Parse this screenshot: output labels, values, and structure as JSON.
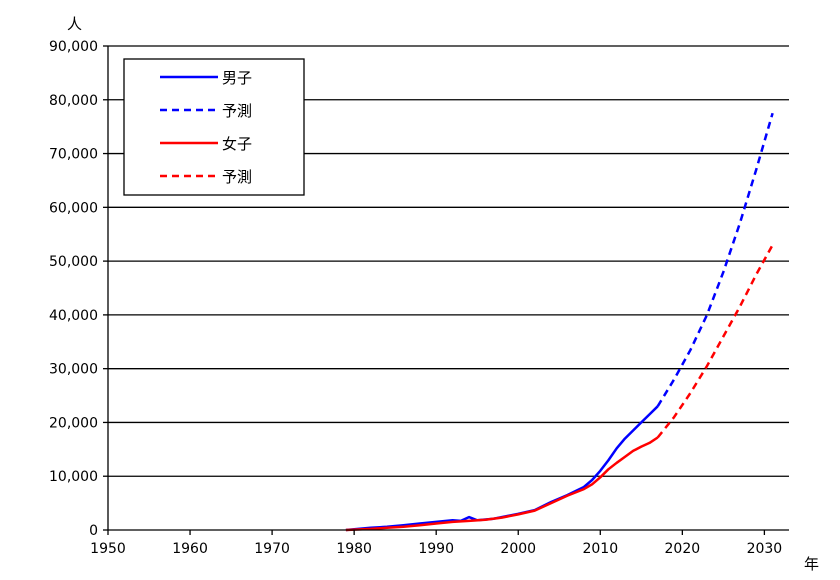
{
  "chart_data": {
    "type": "line",
    "y_unit_label": "人",
    "x_unit_label": "年",
    "xlim": [
      1950,
      2033
    ],
    "ylim": [
      0,
      90000
    ],
    "x_ticks": [
      1950,
      1960,
      1970,
      1980,
      1990,
      2000,
      2010,
      2020,
      2030
    ],
    "x_tick_labels": [
      "1950",
      "1960",
      "1970",
      "1980",
      "1990",
      "2000",
      "2010",
      "2020",
      "2030"
    ],
    "y_ticks": [
      0,
      10000,
      20000,
      30000,
      40000,
      50000,
      60000,
      70000,
      80000,
      90000
    ],
    "y_tick_labels": [
      "0",
      "10,000",
      "20,000",
      "30,000",
      "40,000",
      "50,000",
      "60,000",
      "70,000",
      "80,000",
      "90,000"
    ],
    "grid": "horizontal",
    "legend_position": "top-left",
    "series": [
      {
        "name": "男子",
        "color": "#0000ff",
        "dash": "solid",
        "x": [
          1979,
          1982,
          1984,
          1986,
          1988,
          1990,
          1992,
          1993,
          1994,
          1995,
          1997,
          1999,
          2000,
          2002,
          2004,
          2006,
          2008,
          2009,
          2010,
          2011,
          2012,
          2013,
          2014,
          2015,
          2016,
          2017
        ],
        "y": [
          0,
          400,
          600,
          900,
          1200,
          1500,
          1800,
          1700,
          2400,
          1800,
          2100,
          2700,
          3000,
          3700,
          5200,
          6500,
          8000,
          9300,
          11000,
          13000,
          15200,
          17000,
          18500,
          20000,
          21500,
          23000
        ]
      },
      {
        "name": "予測",
        "color": "#0000ff",
        "dash": "dashed",
        "x": [
          2017,
          2019,
          2021,
          2023,
          2025,
          2027,
          2029,
          2031
        ],
        "y": [
          23000,
          28000,
          33500,
          40000,
          48000,
          57000,
          67000,
          77500
        ]
      },
      {
        "name": "女子",
        "color": "#ff0000",
        "dash": "solid",
        "x": [
          1979,
          1982,
          1984,
          1986,
          1988,
          1990,
          1992,
          1994,
          1996,
          1998,
          2000,
          2002,
          2004,
          2006,
          2008,
          2009,
          2010,
          2011,
          2012,
          2013,
          2014,
          2015,
          2016,
          2017
        ],
        "y": [
          0,
          200,
          400,
          600,
          900,
          1200,
          1500,
          1700,
          1900,
          2300,
          2900,
          3600,
          5000,
          6400,
          7600,
          8500,
          9800,
          11300,
          12500,
          13600,
          14700,
          15500,
          16200,
          17200
        ]
      },
      {
        "name": "予測",
        "color": "#ff0000",
        "dash": "dashed",
        "x": [
          2017,
          2019,
          2021,
          2023,
          2025,
          2027,
          2029,
          2031
        ],
        "y": [
          17200,
          21000,
          25500,
          30500,
          36000,
          41500,
          47500,
          53000
        ]
      }
    ]
  }
}
